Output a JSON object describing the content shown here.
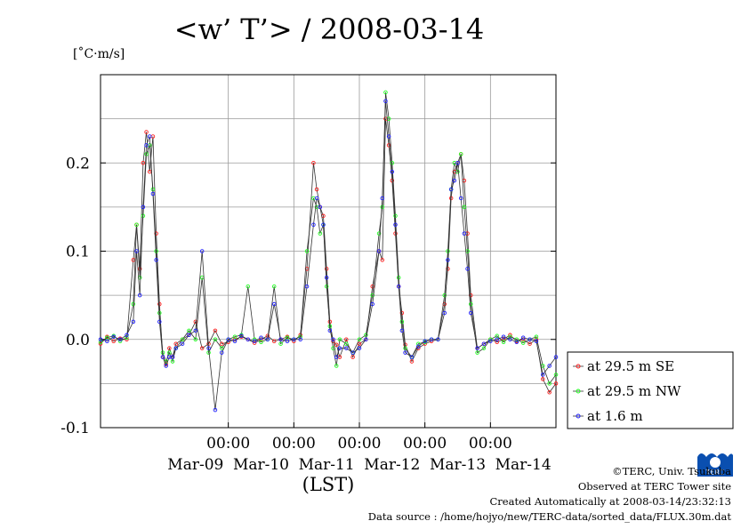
{
  "chart_data": {
    "type": "line",
    "title": "<w’ T’> / 2008-03-14",
    "ylabel": "[˚C·m/s]",
    "xlabel": "(LST)",
    "ylim": [
      -0.1,
      0.3
    ],
    "xlim": [
      -0.95,
      6.0
    ],
    "grid": true,
    "legend_position": "right",
    "y_ticks": [
      -0.1,
      0.0,
      0.1,
      0.2
    ],
    "y_tick_labels": [
      "-0.1",
      "0.0",
      "0.1",
      "0.2"
    ],
    "x_ticks": [
      1,
      2,
      3,
      4,
      5
    ],
    "x_tick_time_labels": [
      "00:00",
      "00:00",
      "00:00",
      "00:00",
      "00:00"
    ],
    "x_tick_date_labels": [
      "Mar-09",
      "Mar-10",
      "Mar-11",
      "Mar-12",
      "Mar-13",
      "Mar-14"
    ],
    "x_tick_date_positions": [
      0.5,
      1.5,
      2.5,
      3.5,
      4.5,
      5.5
    ],
    "series": [
      {
        "name": "at 29.5 m SE",
        "color": "#ff2020",
        "x": [
          -0.95,
          -0.85,
          -0.75,
          -0.65,
          -0.55,
          -0.45,
          -0.4,
          -0.35,
          -0.3,
          -0.25,
          -0.2,
          -0.15,
          -0.1,
          -0.05,
          0.0,
          0.05,
          0.1,
          0.15,
          0.2,
          0.3,
          0.4,
          0.5,
          0.6,
          0.7,
          0.8,
          0.9,
          1.0,
          1.1,
          1.2,
          1.3,
          1.4,
          1.5,
          1.6,
          1.7,
          1.8,
          1.9,
          2.0,
          2.1,
          2.2,
          2.3,
          2.35,
          2.4,
          2.45,
          2.5,
          2.55,
          2.6,
          2.65,
          2.7,
          2.8,
          2.9,
          3.0,
          3.1,
          3.2,
          3.3,
          3.35,
          3.4,
          3.45,
          3.5,
          3.55,
          3.6,
          3.65,
          3.7,
          3.8,
          3.9,
          4.0,
          4.1,
          4.2,
          4.3,
          4.35,
          4.4,
          4.45,
          4.5,
          4.55,
          4.6,
          4.65,
          4.7,
          4.8,
          4.9,
          5.0,
          5.1,
          5.2,
          5.3,
          5.4,
          5.5,
          5.6,
          5.7,
          5.8,
          5.9,
          6.0
        ],
        "values": [
          -0.005,
          0.003,
          -0.002,
          0.001,
          0.0,
          0.09,
          0.13,
          0.08,
          0.2,
          0.235,
          0.19,
          0.23,
          0.12,
          0.04,
          -0.02,
          -0.028,
          -0.01,
          -0.02,
          -0.005,
          0.0,
          0.005,
          0.02,
          -0.01,
          -0.005,
          0.01,
          -0.005,
          -0.003,
          0.0,
          0.003,
          0.0,
          -0.004,
          0.0,
          0.004,
          -0.002,
          0.0,
          0.003,
          -0.002,
          0.005,
          0.08,
          0.2,
          0.17,
          0.15,
          0.14,
          0.08,
          0.02,
          -0.002,
          -0.006,
          -0.02,
          0.0,
          -0.02,
          -0.005,
          0.0,
          0.06,
          0.1,
          0.09,
          0.25,
          0.22,
          0.18,
          0.12,
          0.06,
          0.03,
          -0.006,
          -0.025,
          -0.01,
          -0.005,
          -0.002,
          0.0,
          0.04,
          0.08,
          0.16,
          0.19,
          0.2,
          0.21,
          0.18,
          0.12,
          0.05,
          -0.01,
          -0.005,
          0.0,
          -0.003,
          0.0,
          0.005,
          -0.002,
          0.0,
          -0.005,
          0.0,
          -0.045,
          -0.06,
          -0.05
        ]
      },
      {
        "name": "at 29.5 m NW",
        "color": "#20ff20",
        "x": [
          -0.95,
          -0.85,
          -0.75,
          -0.65,
          -0.55,
          -0.45,
          -0.4,
          -0.35,
          -0.3,
          -0.25,
          -0.2,
          -0.15,
          -0.1,
          -0.05,
          0.0,
          0.05,
          0.1,
          0.15,
          0.2,
          0.3,
          0.4,
          0.5,
          0.6,
          0.7,
          0.8,
          0.9,
          1.0,
          1.1,
          1.2,
          1.3,
          1.4,
          1.5,
          1.6,
          1.7,
          1.8,
          1.9,
          2.0,
          2.1,
          2.2,
          2.3,
          2.35,
          2.4,
          2.45,
          2.5,
          2.55,
          2.6,
          2.65,
          2.7,
          2.8,
          2.9,
          3.0,
          3.1,
          3.2,
          3.3,
          3.35,
          3.4,
          3.45,
          3.5,
          3.55,
          3.6,
          3.65,
          3.7,
          3.8,
          3.9,
          4.0,
          4.1,
          4.2,
          4.3,
          4.35,
          4.4,
          4.45,
          4.5,
          4.55,
          4.6,
          4.65,
          4.7,
          4.8,
          4.9,
          5.0,
          5.1,
          5.2,
          5.3,
          5.4,
          5.5,
          5.6,
          5.7,
          5.8,
          5.9,
          6.0
        ],
        "values": [
          -0.003,
          0.002,
          0.004,
          -0.002,
          0.002,
          0.04,
          0.13,
          0.07,
          0.14,
          0.21,
          0.22,
          0.17,
          0.1,
          0.03,
          -0.015,
          -0.025,
          -0.015,
          -0.025,
          -0.01,
          0.0,
          0.01,
          0.0,
          0.07,
          -0.015,
          0.0,
          -0.01,
          0.0,
          0.003,
          0.005,
          0.06,
          0.0,
          -0.003,
          0.0,
          0.06,
          -0.005,
          0.002,
          0.0,
          0.003,
          0.1,
          0.16,
          0.15,
          0.12,
          0.13,
          0.06,
          0.015,
          -0.01,
          -0.03,
          0.0,
          -0.005,
          -0.015,
          0.0,
          0.005,
          0.05,
          0.12,
          0.15,
          0.28,
          0.25,
          0.2,
          0.14,
          0.07,
          0.02,
          -0.01,
          -0.02,
          -0.005,
          -0.003,
          0.0,
          0.0,
          0.05,
          0.1,
          0.17,
          0.2,
          0.19,
          0.21,
          0.15,
          0.1,
          0.04,
          -0.015,
          -0.01,
          0.0,
          0.004,
          -0.003,
          0.003,
          0.0,
          -0.004,
          0.0,
          0.003,
          -0.03,
          -0.05,
          -0.04
        ]
      },
      {
        "name": "at 1.6 m",
        "color": "#2020ff",
        "x": [
          -0.95,
          -0.85,
          -0.75,
          -0.65,
          -0.55,
          -0.45,
          -0.4,
          -0.35,
          -0.3,
          -0.25,
          -0.2,
          -0.15,
          -0.1,
          -0.05,
          0.0,
          0.05,
          0.1,
          0.15,
          0.2,
          0.3,
          0.4,
          0.5,
          0.6,
          0.7,
          0.8,
          0.9,
          1.0,
          1.1,
          1.2,
          1.3,
          1.4,
          1.5,
          1.6,
          1.7,
          1.8,
          1.9,
          2.0,
          2.1,
          2.2,
          2.3,
          2.35,
          2.4,
          2.45,
          2.5,
          2.55,
          2.6,
          2.65,
          2.7,
          2.8,
          2.9,
          3.0,
          3.1,
          3.2,
          3.3,
          3.35,
          3.4,
          3.45,
          3.5,
          3.55,
          3.6,
          3.65,
          3.7,
          3.8,
          3.9,
          4.0,
          4.1,
          4.2,
          4.3,
          4.35,
          4.4,
          4.45,
          4.5,
          4.55,
          4.6,
          4.65,
          4.7,
          4.8,
          4.9,
          5.0,
          5.1,
          5.2,
          5.3,
          5.4,
          5.5,
          5.6,
          5.7,
          5.8,
          5.9,
          6.0
        ],
        "values": [
          0.0,
          -0.002,
          0.003,
          0.0,
          0.005,
          0.02,
          0.1,
          0.05,
          0.15,
          0.22,
          0.23,
          0.165,
          0.09,
          0.02,
          -0.02,
          -0.03,
          -0.02,
          -0.02,
          -0.01,
          -0.005,
          0.005,
          0.01,
          0.1,
          -0.01,
          -0.08,
          -0.015,
          0.0,
          -0.002,
          0.004,
          0.0,
          -0.002,
          0.002,
          0.0,
          0.04,
          0.0,
          -0.002,
          0.0,
          0.0,
          0.06,
          0.13,
          0.16,
          0.15,
          0.13,
          0.07,
          0.01,
          0.0,
          -0.02,
          -0.01,
          -0.01,
          -0.015,
          -0.01,
          0.0,
          0.04,
          0.1,
          0.16,
          0.27,
          0.23,
          0.19,
          0.13,
          0.06,
          0.01,
          -0.015,
          -0.02,
          -0.008,
          -0.002,
          0.0,
          0.0,
          0.03,
          0.09,
          0.17,
          0.18,
          0.2,
          0.16,
          0.12,
          0.08,
          0.03,
          -0.01,
          -0.005,
          -0.002,
          0.0,
          0.003,
          0.0,
          -0.003,
          0.002,
          0.0,
          -0.002,
          -0.04,
          -0.03,
          -0.02
        ]
      }
    ]
  },
  "credits": {
    "copyright": "©TERC, Univ. Tsukuba",
    "site": "Observed at TERC Tower site",
    "created": "Created Automatically at 2008-03-14/23:32:13",
    "source": "Data source : /home/hojyo/new/TERC-data/sorted_data/FLUX.30m.dat"
  },
  "logo": {
    "text": "TERC",
    "color": "#0a4fb0"
  }
}
